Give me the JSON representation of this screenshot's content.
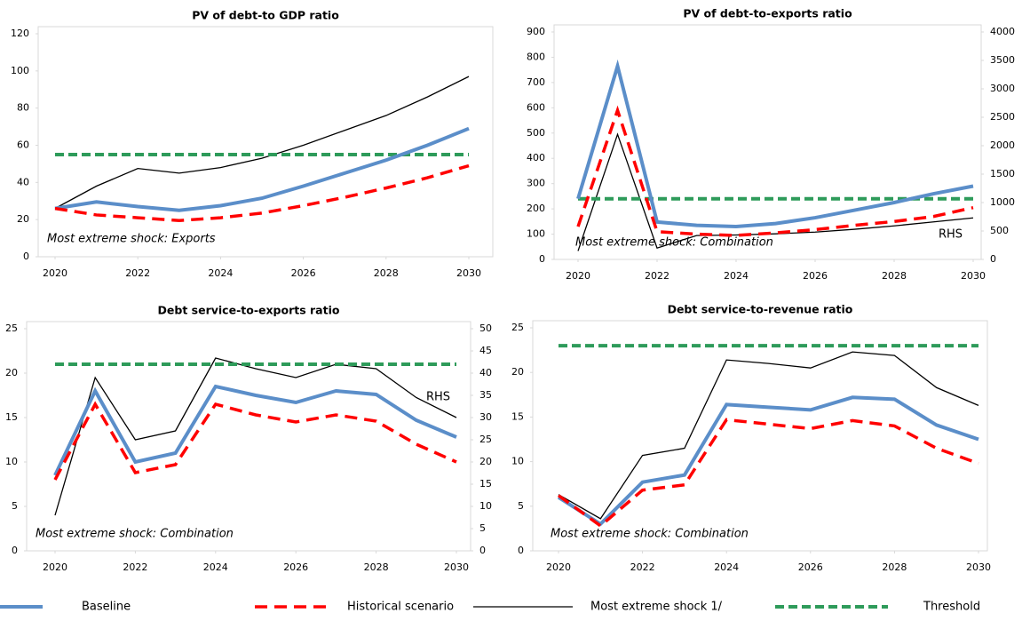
{
  "chart_data": [
    {
      "type": "line",
      "title": "PV of debt-to GDP ratio",
      "annotation": "Most extreme shock: Exports",
      "x": [
        2020,
        2021,
        2022,
        2023,
        2024,
        2025,
        2026,
        2027,
        2028,
        2029,
        2030
      ],
      "xlim": [
        2020,
        2030
      ],
      "xticks": [
        2020,
        2022,
        2024,
        2026,
        2028,
        2030
      ],
      "ylim": [
        0,
        120
      ],
      "yticks": [
        0,
        20,
        40,
        60,
        80,
        100,
        120
      ],
      "series": [
        {
          "name": "Baseline",
          "color": "#5b8ec9",
          "values": [
            26,
            29.5,
            27,
            25,
            27.5,
            31.5,
            38,
            45,
            52,
            60,
            69
          ]
        },
        {
          "name": "Historical scenario",
          "color": "#ff0000",
          "values": [
            26,
            22.5,
            21,
            19.5,
            21,
            23.5,
            27.5,
            32,
            37,
            42.5,
            49
          ]
        },
        {
          "name": "Most extreme shock 1/",
          "color": "#000000",
          "values": [
            26,
            38,
            47.5,
            45,
            48,
            53,
            60,
            68,
            76,
            86,
            97
          ]
        },
        {
          "name": "Threshold",
          "color": "#2e9b5a",
          "values": [
            55,
            55,
            55,
            55,
            55,
            55,
            55,
            55,
            55,
            55,
            55
          ]
        }
      ]
    },
    {
      "type": "line",
      "title": "PV of debt-to-exports ratio",
      "annotation": "Most extreme shock: Combination",
      "rhs_label": "RHS",
      "x": [
        2020,
        2021,
        2022,
        2023,
        2024,
        2025,
        2026,
        2027,
        2028,
        2029,
        2030
      ],
      "xlim": [
        2020,
        2030
      ],
      "xticks": [
        2020,
        2022,
        2024,
        2026,
        2028,
        2030
      ],
      "ylim": [
        0,
        900
      ],
      "yticks": [
        0,
        100,
        200,
        300,
        400,
        500,
        600,
        700,
        800,
        900
      ],
      "y2lim": [
        0,
        4000
      ],
      "y2ticks": [
        0,
        500,
        1000,
        1500,
        2000,
        2500,
        3000,
        3500,
        4000
      ],
      "series": [
        {
          "name": "Baseline",
          "color": "#5b8ec9",
          "values": [
            240,
            765,
            148,
            135,
            130,
            142,
            165,
            195,
            225,
            260,
            290
          ]
        },
        {
          "name": "Historical scenario",
          "color": "#ff0000",
          "values": [
            130,
            590,
            110,
            100,
            95,
            105,
            118,
            135,
            150,
            170,
            205
          ]
        },
        {
          "name": "Most extreme shock 1/",
          "color": "#000000",
          "axis": "y2",
          "values": [
            150,
            2200,
            200,
            420,
            430,
            450,
            480,
            530,
            590,
            660,
            730
          ]
        },
        {
          "name": "Threshold",
          "color": "#2e9b5a",
          "values": [
            240,
            240,
            240,
            240,
            240,
            240,
            240,
            240,
            240,
            240,
            240
          ]
        }
      ]
    },
    {
      "type": "line",
      "title": "Debt service-to-exports ratio",
      "annotation": "Most extreme shock: Combination",
      "rhs_label": "RHS",
      "x": [
        2020,
        2021,
        2022,
        2023,
        2024,
        2025,
        2026,
        2027,
        2028,
        2029,
        2030
      ],
      "xlim": [
        2020,
        2030
      ],
      "xticks": [
        2020,
        2022,
        2024,
        2026,
        2028,
        2030
      ],
      "ylim": [
        0,
        25
      ],
      "yticks": [
        0,
        5,
        10,
        15,
        20,
        25
      ],
      "y2lim": [
        0,
        50
      ],
      "y2ticks": [
        0,
        5,
        10,
        15,
        20,
        25,
        30,
        35,
        40,
        45,
        50
      ],
      "series": [
        {
          "name": "Baseline",
          "color": "#5b8ec9",
          "values": [
            8.5,
            18,
            10,
            11,
            18.5,
            17.5,
            16.7,
            18,
            17.6,
            14.7,
            12.8
          ]
        },
        {
          "name": "Historical scenario",
          "color": "#ff0000",
          "values": [
            8,
            16.5,
            8.8,
            9.7,
            16.5,
            15.3,
            14.5,
            15.3,
            14.6,
            12,
            10
          ]
        },
        {
          "name": "Most extreme shock 1/",
          "color": "#000000",
          "axis": "y2",
          "values": [
            8,
            39,
            25,
            27,
            43.4,
            41,
            39,
            42,
            41,
            34.5,
            30
          ]
        },
        {
          "name": "Threshold",
          "color": "#2e9b5a",
          "values": [
            21,
            21,
            21,
            21,
            21,
            21,
            21,
            21,
            21,
            21,
            21
          ]
        }
      ]
    },
    {
      "type": "line",
      "title": "Debt service-to-revenue ratio",
      "annotation": "Most extreme shock: Combination",
      "x": [
        2020,
        2021,
        2022,
        2023,
        2024,
        2025,
        2026,
        2027,
        2028,
        2029,
        2030
      ],
      "xlim": [
        2020,
        2030
      ],
      "xticks": [
        2020,
        2022,
        2024,
        2026,
        2028,
        2030
      ],
      "ylim": [
        0,
        25
      ],
      "yticks": [
        0,
        5,
        10,
        15,
        20,
        25
      ],
      "series": [
        {
          "name": "Baseline",
          "color": "#5b8ec9",
          "values": [
            6,
            3,
            7.7,
            8.5,
            16.4,
            16.1,
            15.8,
            17.2,
            17,
            14.1,
            12.5
          ]
        },
        {
          "name": "Historical scenario",
          "color": "#ff0000",
          "values": [
            6.2,
            2.8,
            6.8,
            7.4,
            14.7,
            14.2,
            13.7,
            14.6,
            14,
            11.5,
            9.8
          ]
        },
        {
          "name": "Most extreme shock 1/",
          "color": "#000000",
          "values": [
            6.3,
            3.6,
            10.7,
            11.5,
            21.4,
            21,
            20.5,
            22.3,
            21.9,
            18.3,
            16.3
          ]
        },
        {
          "name": "Threshold",
          "color": "#2e9b5a",
          "values": [
            23,
            23,
            23,
            23,
            23,
            23,
            23,
            23,
            23,
            23,
            23
          ]
        }
      ]
    }
  ]
}
